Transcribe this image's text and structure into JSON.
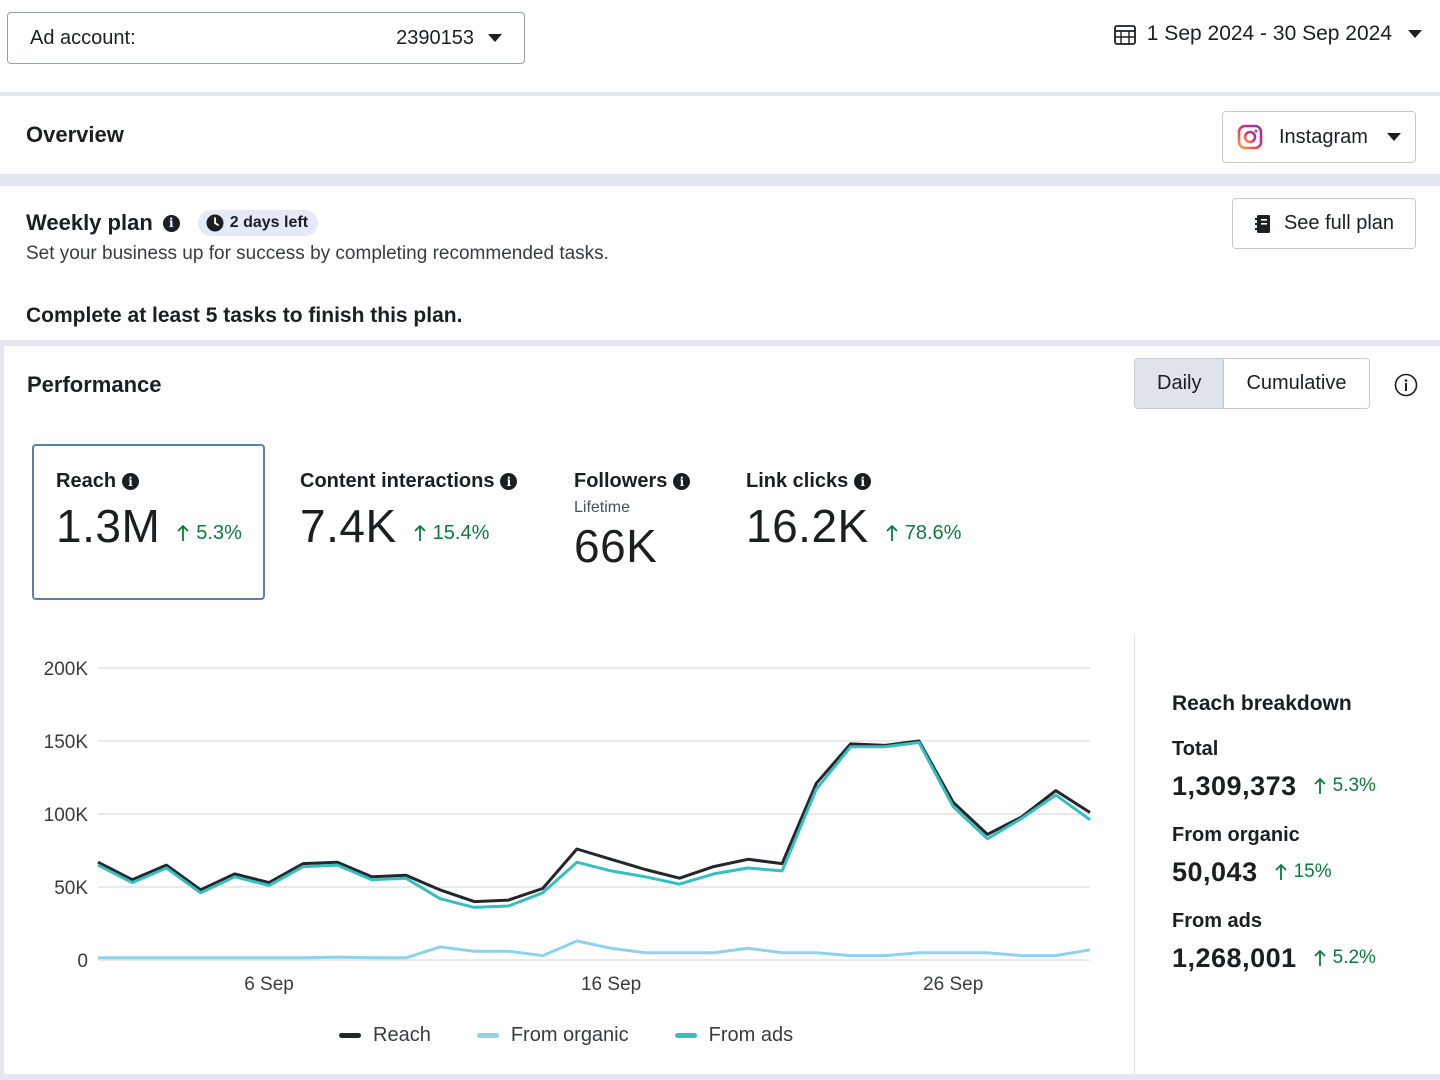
{
  "topbar": {
    "ad_account_label": "Ad account:",
    "ad_account_value": "2390153",
    "date_range": "1 Sep 2024 - 30 Sep 2024"
  },
  "overview": {
    "title": "Overview",
    "platform": "Instagram"
  },
  "weekly_plan": {
    "title": "Weekly plan",
    "days_left": "2 days left",
    "subtitle": "Set your business up for success by completing recommended tasks.",
    "goal": "Complete at least 5 tasks to finish this plan.",
    "see_full_plan": "See full plan"
  },
  "performance": {
    "title": "Performance",
    "toggle": [
      "Daily",
      "Cumulative"
    ],
    "active_toggle": "Daily",
    "metrics": {
      "reach": {
        "label": "Reach",
        "value": "1.3M",
        "delta": "5.3%"
      },
      "interactions": {
        "label": "Content interactions",
        "value": "7.4K",
        "delta": "15.4%"
      },
      "followers": {
        "label": "Followers",
        "sublabel": "Lifetime",
        "value": "66K"
      },
      "clicks": {
        "label": "Link clicks",
        "value": "16.2K",
        "delta": "78.6%"
      }
    },
    "legend": {
      "reach": "Reach",
      "organic": "From organic",
      "ads": "From ads"
    },
    "breakdown": {
      "title": "Reach breakdown",
      "total_label": "Total",
      "total_value": "1,309,373",
      "total_delta": "5.3%",
      "organic_label": "From organic",
      "organic_value": "50,043",
      "organic_delta": "15%",
      "ads_label": "From ads",
      "ads_value": "1,268,001",
      "ads_delta": "5.2%"
    }
  },
  "colors": {
    "reach_line": "#23262b",
    "organic_line": "#8fd2ee",
    "ads_line": "#36bfbf",
    "positive": "#0b7a3b",
    "instagram": "#e1306c"
  },
  "chart_data": {
    "type": "line",
    "ylim": [
      0,
      200000
    ],
    "yticks": [
      0,
      50000,
      100000,
      150000,
      200000
    ],
    "ytick_labels": [
      "0",
      "50K",
      "100K",
      "150K",
      "200K"
    ],
    "x": [
      1,
      2,
      3,
      4,
      5,
      6,
      7,
      8,
      9,
      10,
      11,
      12,
      13,
      14,
      15,
      16,
      17,
      18,
      19,
      20,
      21,
      22,
      23,
      24,
      25,
      26,
      27,
      28,
      29,
      30
    ],
    "xtick_values": [
      6,
      16,
      26
    ],
    "xtick_labels": [
      "6 Sep",
      "16 Sep",
      "26 Sep"
    ],
    "series": [
      {
        "name": "Reach",
        "values": [
          67000,
          55000,
          65000,
          48000,
          59000,
          53000,
          66000,
          67000,
          57000,
          58000,
          48000,
          40000,
          41000,
          49000,
          76000,
          69000,
          62000,
          56000,
          64000,
          69000,
          66000,
          121000,
          148000,
          147000,
          150000,
          108000,
          86000,
          98000,
          116000,
          101000
        ]
      },
      {
        "name": "From organic",
        "values": [
          1500,
          1500,
          1500,
          1500,
          1500,
          1500,
          1500,
          2000,
          1500,
          1500,
          9000,
          6000,
          6000,
          3000,
          13000,
          8000,
          5000,
          5000,
          5000,
          8000,
          5000,
          5000,
          3000,
          3000,
          5000,
          5000,
          5000,
          3000,
          3000,
          7000
        ]
      },
      {
        "name": "From ads",
        "values": [
          65000,
          53000,
          63000,
          46000,
          57000,
          51000,
          64000,
          65000,
          55000,
          56000,
          42000,
          36000,
          37000,
          46000,
          67000,
          61000,
          57000,
          52000,
          59000,
          63000,
          61000,
          117000,
          146000,
          146000,
          149000,
          105000,
          83000,
          97000,
          113000,
          96000
        ]
      }
    ]
  }
}
